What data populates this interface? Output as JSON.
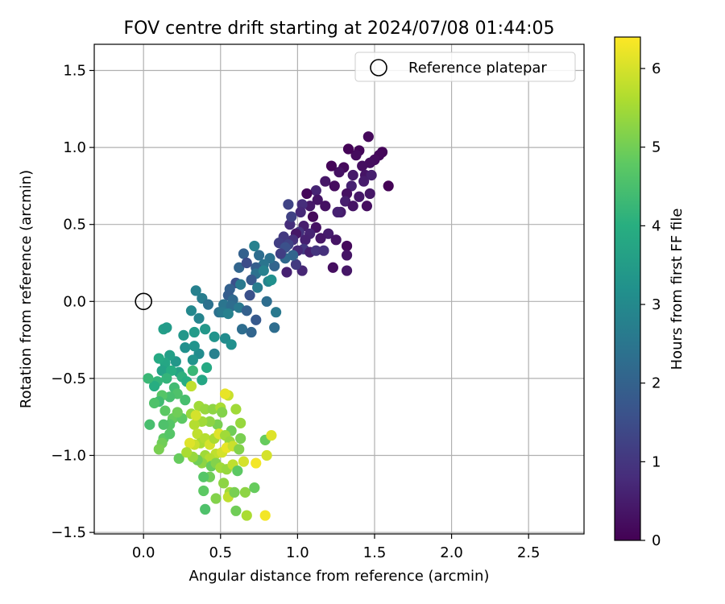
{
  "chart_data": {
    "type": "scatter",
    "title": "FOV centre drift starting at 2024/07/08 01:44:05",
    "xlabel": "Angular distance from reference (arcmin)",
    "ylabel": "Rotation from reference (arcmin)",
    "xlim": [
      -0.32,
      2.86
    ],
    "ylim": [
      -1.51,
      1.67
    ],
    "xticks": [
      0.0,
      0.5,
      1.0,
      1.5,
      2.0,
      2.5
    ],
    "xtick_labels": [
      "0.0",
      "0.5",
      "1.0",
      "1.5",
      "2.0",
      "2.5"
    ],
    "yticks": [
      -1.5,
      -1.0,
      -0.5,
      0.0,
      0.5,
      1.0,
      1.5
    ],
    "ytick_labels": [
      "−1.5",
      "−1.0",
      "−0.5",
      "0.0",
      "0.5",
      "1.0",
      "1.5"
    ],
    "grid": true,
    "legend": {
      "location": "upper right",
      "entries": [
        {
          "label": "Reference platepar",
          "marker": "open-circle"
        }
      ]
    },
    "reference_point": {
      "x": 0.0,
      "y": 0.0
    },
    "colorbar": {
      "label": "Hours from first FF file",
      "colormap": "viridis",
      "range": [
        0,
        6.4
      ],
      "ticks": [
        0,
        1,
        2,
        3,
        4,
        5,
        6
      ],
      "tick_labels": [
        "0",
        "1",
        "2",
        "3",
        "4",
        "5",
        "6"
      ]
    },
    "points": [
      [
        1.46,
        1.07,
        0.15
      ],
      [
        1.55,
        0.97,
        0.1
      ],
      [
        1.53,
        0.95,
        0.12
      ],
      [
        1.4,
        0.98,
        0.1
      ],
      [
        1.5,
        0.92,
        0.18
      ],
      [
        1.47,
        0.9,
        0.22
      ],
      [
        1.38,
        0.95,
        0.2
      ],
      [
        1.33,
        0.99,
        0.06
      ],
      [
        1.42,
        0.88,
        0.25
      ],
      [
        1.44,
        0.82,
        0.35
      ],
      [
        1.36,
        0.82,
        0.45
      ],
      [
        1.3,
        0.87,
        0.15
      ],
      [
        1.27,
        0.84,
        0.3
      ],
      [
        1.48,
        0.82,
        0.55
      ],
      [
        1.43,
        0.78,
        0.5
      ],
      [
        1.59,
        0.75,
        0.05
      ],
      [
        1.47,
        0.7,
        0.4
      ],
      [
        1.35,
        0.75,
        0.6
      ],
      [
        1.32,
        0.7,
        0.3
      ],
      [
        1.4,
        0.68,
        0.45
      ],
      [
        1.31,
        0.65,
        0.55
      ],
      [
        1.36,
        0.62,
        0.35
      ],
      [
        1.45,
        0.62,
        0.25
      ],
      [
        1.28,
        0.58,
        0.5
      ],
      [
        1.22,
        0.88,
        0.08
      ],
      [
        1.18,
        0.78,
        0.4
      ],
      [
        1.24,
        0.75,
        0.2
      ],
      [
        1.12,
        0.72,
        0.65
      ],
      [
        1.06,
        0.7,
        0.1
      ],
      [
        1.13,
        0.66,
        0.35
      ],
      [
        1.08,
        0.62,
        0.45
      ],
      [
        1.18,
        0.62,
        0.3
      ],
      [
        1.26,
        0.58,
        0.6
      ],
      [
        1.03,
        0.63,
        0.85
      ],
      [
        1.02,
        0.58,
        0.75
      ],
      [
        1.1,
        0.55,
        0.15
      ],
      [
        1.04,
        0.49,
        0.55
      ],
      [
        1.12,
        0.48,
        0.3
      ],
      [
        1.2,
        0.44,
        0.5
      ],
      [
        1.15,
        0.41,
        0.4
      ],
      [
        1.25,
        0.4,
        0.35
      ],
      [
        1.08,
        0.44,
        0.65
      ],
      [
        1.01,
        0.45,
        0.95
      ],
      [
        0.95,
        0.5,
        0.85
      ],
      [
        0.99,
        0.44,
        0.4
      ],
      [
        1.05,
        0.4,
        0.6
      ],
      [
        0.97,
        0.4,
        0.9
      ],
      [
        0.91,
        0.42,
        1.1
      ],
      [
        0.94,
        0.37,
        1.3
      ],
      [
        0.88,
        0.38,
        1.2
      ],
      [
        1.04,
        0.34,
        1.05
      ],
      [
        1.0,
        0.33,
        0.75
      ],
      [
        1.08,
        0.32,
        0.55
      ],
      [
        1.12,
        0.33,
        1.0
      ],
      [
        1.17,
        0.33,
        0.9
      ],
      [
        1.32,
        0.36,
        0.15
      ],
      [
        1.32,
        0.3,
        0.35
      ],
      [
        1.23,
        0.22,
        0.25
      ],
      [
        1.32,
        0.2,
        0.4
      ],
      [
        1.03,
        0.2,
        0.7
      ],
      [
        0.93,
        0.19,
        0.6
      ],
      [
        0.99,
        0.24,
        1.1
      ],
      [
        0.97,
        0.3,
        2.1
      ],
      [
        0.92,
        0.28,
        2.2
      ],
      [
        0.85,
        0.23,
        2.1
      ],
      [
        0.82,
        0.28,
        2.4
      ],
      [
        0.78,
        0.24,
        2.5
      ],
      [
        0.73,
        0.22,
        1.9
      ],
      [
        0.75,
        0.3,
        2.3
      ],
      [
        0.65,
        0.31,
        2.0
      ],
      [
        0.72,
        0.36,
        2.8
      ],
      [
        0.73,
        0.18,
        2.4
      ],
      [
        0.7,
        0.14,
        1.8
      ],
      [
        0.62,
        0.22,
        2.1
      ],
      [
        0.6,
        0.12,
        1.6
      ],
      [
        0.56,
        0.08,
        2.0
      ],
      [
        0.63,
        0.11,
        2.6
      ],
      [
        0.55,
        0.04,
        1.9
      ],
      [
        0.58,
        0.01,
        2.2
      ],
      [
        0.74,
        0.09,
        2.7
      ],
      [
        0.69,
        0.04,
        1.6
      ],
      [
        0.8,
        0.0,
        2.3
      ],
      [
        0.81,
        0.13,
        2.9
      ],
      [
        0.78,
        0.2,
        2.8
      ],
      [
        0.83,
        0.14,
        3.2
      ],
      [
        0.52,
        -0.02,
        2.5
      ],
      [
        0.57,
        -0.03,
        2.3
      ],
      [
        0.62,
        -0.04,
        2.6
      ],
      [
        0.49,
        -0.07,
        2.4
      ],
      [
        0.51,
        -0.07,
        2.6
      ],
      [
        0.55,
        -0.08,
        2.8
      ],
      [
        0.38,
        0.02,
        2.7
      ],
      [
        0.34,
        0.07,
        2.8
      ],
      [
        0.42,
        -0.02,
        2.4
      ],
      [
        0.31,
        -0.06,
        3.0
      ],
      [
        0.36,
        -0.11,
        2.9
      ],
      [
        0.73,
        -0.12,
        1.8
      ],
      [
        0.67,
        -0.06,
        2.0
      ],
      [
        0.64,
        -0.18,
        2.3
      ],
      [
        0.7,
        -0.2,
        2.1
      ],
      [
        0.86,
        -0.07,
        2.6
      ],
      [
        0.85,
        -0.17,
        2.3
      ],
      [
        0.94,
        0.63,
        1.3
      ],
      [
        0.96,
        0.55,
        1.25
      ],
      [
        0.92,
        0.35,
        1.6
      ],
      [
        0.89,
        0.31,
        1.2
      ],
      [
        0.67,
        0.25,
        1.5
      ],
      [
        0.53,
        -0.24,
        3.1
      ],
      [
        0.57,
        -0.28,
        3.2
      ],
      [
        0.46,
        -0.23,
        3.3
      ],
      [
        0.4,
        -0.18,
        3.4
      ],
      [
        0.46,
        -0.34,
        2.8
      ],
      [
        0.36,
        -0.34,
        3.1
      ],
      [
        0.32,
        -0.38,
        3.3
      ],
      [
        0.33,
        -0.2,
        3.5
      ],
      [
        0.26,
        -0.22,
        3.4
      ],
      [
        0.27,
        -0.3,
        3.2
      ],
      [
        0.33,
        -0.29,
        3.3
      ],
      [
        0.13,
        -0.18,
        3.6
      ],
      [
        0.15,
        -0.17,
        3.5
      ],
      [
        0.21,
        -0.39,
        3.4
      ],
      [
        0.17,
        -0.35,
        3.6
      ],
      [
        0.23,
        -0.46,
        3.7
      ],
      [
        0.14,
        -0.4,
        3.8
      ],
      [
        0.1,
        -0.37,
        3.9
      ],
      [
        0.12,
        -0.45,
        3.7
      ],
      [
        0.18,
        -0.45,
        4.0
      ],
      [
        0.09,
        -0.52,
        4.2
      ],
      [
        0.07,
        -0.55,
        4.0
      ],
      [
        0.03,
        -0.5,
        4.3
      ],
      [
        0.15,
        -0.5,
        4.2
      ],
      [
        0.2,
        -0.56,
        4.4
      ],
      [
        0.25,
        -0.49,
        4.1
      ],
      [
        0.28,
        -0.52,
        4.0
      ],
      [
        0.32,
        -0.45,
        4.3
      ],
      [
        0.38,
        -0.51,
        3.8
      ],
      [
        0.41,
        -0.43,
        3.9
      ],
      [
        0.27,
        -0.64,
        4.5
      ],
      [
        0.22,
        -0.6,
        4.6
      ],
      [
        0.17,
        -0.62,
        4.5
      ],
      [
        0.12,
        -0.61,
        4.7
      ],
      [
        0.1,
        -0.65,
        4.4
      ],
      [
        0.07,
        -0.66,
        4.6
      ],
      [
        0.14,
        -0.71,
        4.8
      ],
      [
        0.19,
        -0.76,
        4.9
      ],
      [
        0.25,
        -0.76,
        4.8
      ],
      [
        0.22,
        -0.72,
        5.0
      ],
      [
        0.17,
        -0.8,
        4.7
      ],
      [
        0.13,
        -0.8,
        4.6
      ],
      [
        0.04,
        -0.8,
        4.5
      ],
      [
        0.13,
        -0.89,
        4.8
      ],
      [
        0.17,
        -0.86,
        4.7
      ],
      [
        0.12,
        -0.92,
        5.0
      ],
      [
        0.1,
        -0.96,
        5.1
      ],
      [
        0.23,
        -1.02,
        4.9
      ],
      [
        0.31,
        -0.55,
        5.8
      ],
      [
        0.36,
        -0.68,
        5.5
      ],
      [
        0.4,
        -0.7,
        5.4
      ],
      [
        0.45,
        -0.7,
        5.3
      ],
      [
        0.5,
        -0.69,
        5.6
      ],
      [
        0.55,
        -0.61,
        5.9
      ],
      [
        0.51,
        -0.72,
        5.2
      ],
      [
        0.6,
        -0.7,
        5.5
      ],
      [
        0.63,
        -0.79,
        5.4
      ],
      [
        0.57,
        -0.84,
        5.0
      ],
      [
        0.48,
        -0.8,
        5.1
      ],
      [
        0.43,
        -0.78,
        5.3
      ],
      [
        0.38,
        -0.78,
        5.5
      ],
      [
        0.33,
        -0.8,
        5.7
      ],
      [
        0.31,
        -0.73,
        5.4
      ],
      [
        0.34,
        -0.74,
        6.0
      ],
      [
        0.35,
        -0.86,
        5.8
      ],
      [
        0.37,
        -0.92,
        5.6
      ],
      [
        0.33,
        -0.93,
        5.9
      ],
      [
        0.3,
        -0.92,
        6.1
      ],
      [
        0.4,
        -0.89,
        5.7
      ],
      [
        0.43,
        -0.93,
        6.0
      ],
      [
        0.46,
        -0.89,
        5.6
      ],
      [
        0.49,
        -0.86,
        6.1
      ],
      [
        0.53,
        -0.87,
        5.5
      ],
      [
        0.56,
        -0.91,
        5.4
      ],
      [
        0.47,
        -0.99,
        5.8
      ],
      [
        0.51,
        -0.98,
        6.0
      ],
      [
        0.54,
        -0.95,
        6.2
      ],
      [
        0.58,
        -0.94,
        5.9
      ],
      [
        0.63,
        -0.89,
        5.1
      ],
      [
        0.4,
        -1.0,
        5.5
      ],
      [
        0.43,
        -1.02,
        5.7
      ],
      [
        0.38,
        -1.05,
        5.3
      ],
      [
        0.35,
        -1.03,
        5.0
      ],
      [
        0.32,
        -1.01,
        5.4
      ],
      [
        0.28,
        -0.98,
        5.6
      ],
      [
        0.44,
        -1.07,
        4.9
      ],
      [
        0.47,
        -1.05,
        5.2
      ],
      [
        0.5,
        -1.08,
        5.5
      ],
      [
        0.54,
        -1.09,
        5.4
      ],
      [
        0.58,
        -1.06,
        5.8
      ],
      [
        0.61,
        -1.1,
        4.8
      ],
      [
        0.65,
        -1.04,
        6.0
      ],
      [
        0.73,
        -1.05,
        6.3
      ],
      [
        0.8,
        -1.0,
        6.0
      ],
      [
        0.79,
        -0.9,
        4.9
      ],
      [
        0.83,
        -0.87,
        6.1
      ],
      [
        0.62,
        -0.96,
        5.2
      ],
      [
        0.43,
        -1.14,
        5.0
      ],
      [
        0.39,
        -1.14,
        4.7
      ],
      [
        0.39,
        -1.23,
        4.8
      ],
      [
        0.52,
        -1.18,
        5.3
      ],
      [
        0.56,
        -1.24,
        5.5
      ],
      [
        0.55,
        -1.27,
        5.8
      ],
      [
        0.59,
        -1.24,
        5.1
      ],
      [
        0.66,
        -1.24,
        5.3
      ],
      [
        0.72,
        -1.21,
        4.9
      ],
      [
        0.6,
        -1.36,
        5.0
      ],
      [
        0.67,
        -1.39,
        5.6
      ],
      [
        0.79,
        -1.39,
        6.3
      ],
      [
        0.4,
        -1.35,
        4.6
      ],
      [
        0.47,
        -1.28,
        5.2
      ],
      [
        0.53,
        -0.6,
        6.2
      ]
    ]
  }
}
